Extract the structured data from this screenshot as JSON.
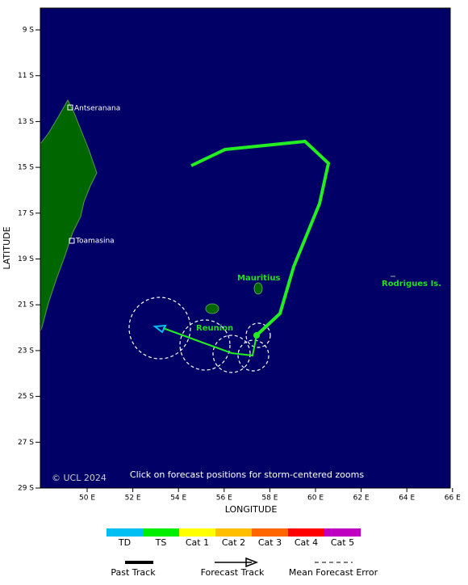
{
  "map": {
    "lat_ticks": [
      "9 S",
      "11 S",
      "13 S",
      "15 S",
      "17 S",
      "19 S",
      "21 S",
      "23 S",
      "25 S",
      "27 S",
      "29 S"
    ],
    "lon_ticks": [
      "50 E",
      "52 E",
      "54 E",
      "56 E",
      "58 E",
      "60 E",
      "62 E",
      "64 E",
      "66 E"
    ],
    "x_label": "LONGITUDE",
    "y_label": "LATITUDE",
    "places": [
      "Antseranana",
      "Toamasina",
      "Mauritius",
      "Reunion",
      "Rodrigues Is."
    ],
    "copyright": "© UCL 2024",
    "note": "Click on forecast positions for storm-centered zooms"
  },
  "legend": {
    "categories": [
      "TD",
      "TS",
      "Cat 1",
      "Cat 2",
      "Cat 3",
      "Cat 4",
      "Cat 5"
    ],
    "category_colors": [
      "#00bff3",
      "#00ee00",
      "#ffff00",
      "#ffbf00",
      "#ff6600",
      "#ff0000",
      "#c000c0"
    ],
    "lines": [
      "Past Track",
      "Forecast Track",
      "Mean Forecast Error"
    ]
  }
}
